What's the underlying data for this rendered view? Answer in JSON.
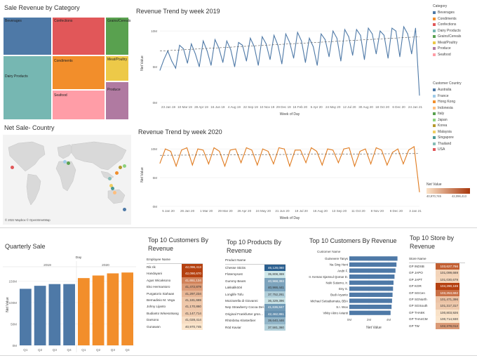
{
  "treemap": {
    "title": "Sale Revenue by Category",
    "cells": [
      {
        "label": "Beverages",
        "color": "#4e79a7"
      },
      {
        "label": "Confections",
        "color": "#e15759"
      },
      {
        "label": "Grains/Cereals",
        "color": "#59a14f"
      },
      {
        "label": "Condiments",
        "color": "#f28e2b"
      },
      {
        "label": "Meat/Poultry",
        "color": "#edc948"
      },
      {
        "label": "Dairy Products",
        "color": "#76b7b2"
      },
      {
        "label": "Seafood",
        "color": "#ff9da7"
      },
      {
        "label": "Produce",
        "color": "#b07aa1"
      }
    ]
  },
  "category_legend": {
    "title": "Category",
    "items": [
      {
        "label": "Beverages",
        "color": "#4e79a7"
      },
      {
        "label": "Condiments",
        "color": "#f28e2b"
      },
      {
        "label": "Confections",
        "color": "#e15759"
      },
      {
        "label": "Dairy Products",
        "color": "#76b7b2"
      },
      {
        "label": "Grains/Cereals",
        "color": "#59a14f"
      },
      {
        "label": "Meat/Poultry",
        "color": "#edc948"
      },
      {
        "label": "Produce",
        "color": "#b07aa1"
      },
      {
        "label": "Seafood",
        "color": "#ff9da7"
      }
    ]
  },
  "country_legend": {
    "title": "Customer Country",
    "items": [
      {
        "label": "Australia",
        "color": "#4e79a7"
      },
      {
        "label": "France",
        "color": "#a0cbe8"
      },
      {
        "label": "Hong Kong",
        "color": "#f28e2b"
      },
      {
        "label": "Indonesia",
        "color": "#ffbe7d"
      },
      {
        "label": "Italy",
        "color": "#59a14f"
      },
      {
        "label": "Japan",
        "color": "#8cd17d"
      },
      {
        "label": "Korea",
        "color": "#b6992d"
      },
      {
        "label": "Malaysia",
        "color": "#f1ce63"
      },
      {
        "label": "Singapore",
        "color": "#499894"
      },
      {
        "label": "Thailand",
        "color": "#86bcb6"
      },
      {
        "label": "USA",
        "color": "#e15759"
      }
    ]
  },
  "net_value_legend": {
    "title": "Net Value",
    "min": "40,970,745",
    "max": "42,096,413",
    "color_low": "#fbe3c9",
    "color_high": "#a8380d"
  },
  "map": {
    "title": "Net Sale- Country",
    "attribution": "© 2022 Mapbox © OpenStreetMap"
  },
  "chart_data": [
    {
      "type": "line",
      "title": "Revenue Trend by week 2019",
      "xlabel": "Week of Day",
      "ylabel": "Net Value",
      "y_ticks": [
        "0M",
        "5M",
        "10M"
      ],
      "ylim": [
        0,
        11
      ],
      "x_ticks": [
        "23 Jan 19",
        "10 Mar 19",
        "28 Apr 19",
        "16 Jun 19",
        "4 Aug 19",
        "22 Sep 19",
        "10 Nov 19",
        "29 Dec 19",
        "16 Feb 20",
        "5 Apr 20",
        "24 May 20",
        "12 Jul 20",
        "30 Aug 20",
        "18 Oct 20",
        "6 Dec 20",
        "24 Jan 21"
      ],
      "color": "#4e79a7",
      "values": [
        4.5,
        6.0,
        7.2,
        5.8,
        4.8,
        8.0,
        7.5,
        5.5,
        8.2,
        6.8,
        5.0,
        8.6,
        7.2,
        5.2,
        8.8,
        7.6,
        5.6,
        8.6,
        7.4,
        5.0,
        8.4,
        8.0,
        5.8,
        9.0,
        7.8,
        5.2,
        9.2,
        8.2,
        6.0,
        9.4,
        8.0,
        5.4,
        9.6,
        8.4,
        6.2,
        9.8,
        8.6,
        5.6,
        9.0,
        7.8,
        5.2,
        9.6,
        8.8,
        6.4,
        10.0,
        9.0,
        5.8,
        10.2,
        9.2,
        6.6,
        10.2,
        9.4,
        6.0,
        10.4,
        9.6,
        6.8,
        10.0,
        9.4,
        6.2,
        10.4,
        10.0,
        6.4,
        10.6,
        9.6,
        6.8,
        10.4,
        1.0
      ],
      "trend": [
        7.2,
        9.2
      ]
    },
    {
      "type": "line",
      "title": "Revenue Trend by week 2020",
      "xlabel": "Week of Day",
      "ylabel": "Net Value",
      "y_ticks": [
        "0M",
        "5M",
        "10M"
      ],
      "ylim": [
        0,
        11
      ],
      "x_ticks": [
        "5 Jan 20",
        "26 Jan 20",
        "1 Mar 20",
        "29 Mar 20",
        "26 Apr 20",
        "24 May 20",
        "21 Jun 20",
        "19 Jul 20",
        "16 Aug 20",
        "13 Sep 20",
        "11 Oct 20",
        "8 Nov 20",
        "6 Dec 20",
        "3 Jan 21"
      ],
      "color": "#e07b1f",
      "values": [
        7.5,
        10.0,
        9.6,
        7.0,
        9.8,
        10.2,
        7.2,
        10.0,
        9.8,
        7.4,
        10.2,
        9.6,
        7.0,
        9.8,
        10.0,
        7.6,
        10.2,
        9.8,
        7.2,
        10.0,
        9.6,
        7.4,
        10.2,
        10.0,
        7.0,
        9.8,
        9.8,
        7.6,
        10.2,
        9.6,
        7.2,
        10.0,
        9.8,
        7.6,
        10.0,
        10.2,
        7.0,
        9.6,
        10.0,
        7.4,
        10.2,
        9.8,
        7.2,
        9.4,
        10.0,
        7.4,
        9.8,
        10.4,
        2.5
      ],
      "trend": [
        8.9,
        9.2
      ]
    },
    {
      "type": "bar",
      "title": "Quarterly Sale",
      "header": "Day",
      "ylabel": "Net Value",
      "y_ticks": [
        "0M",
        "50M",
        "100M",
        "150M"
      ],
      "ylim": [
        0,
        190
      ],
      "groups": [
        {
          "year": "2019",
          "color": "#4e79a7",
          "categories": [
            "Q1",
            "Q2",
            "Q3",
            "Q4"
          ],
          "values": [
            132,
            139,
            143,
            143
          ]
        },
        {
          "year": "2020",
          "color": "#f28e2b",
          "categories": [
            "Q1",
            "Q2",
            "Q3",
            "Q4"
          ],
          "values": [
            157,
            163,
            168,
            170
          ]
        }
      ]
    },
    {
      "type": "bar",
      "orientation": "horizontal",
      "title": "Top 10 Customers By Revenue",
      "column_header": "Customer Name",
      "xlabel": "Net Value",
      "x_ticks": [
        "0M",
        "2M",
        "4M"
      ],
      "xlim": [
        0,
        5
      ],
      "color": "#4e79a7",
      "categories": [
        "Guinevere Tanys",
        "Na Sing Hent",
        "Andri F.",
        "Ir. Kemas Sjamsul Qomar D.",
        "Nuki Sutarno, Ir.",
        "Eny S.",
        "Budi Aryanto",
        "Michael Setiadiarnata, BBA",
        "S.I. Woo",
        "Vikky Akiro Avianti"
      ],
      "values": [
        4.9,
        4.8,
        4.7,
        4.6,
        4.5,
        4.45,
        4.4,
        4.35,
        4.3,
        4.2
      ]
    }
  ],
  "customers_table": {
    "title": "Top 10 Customers By Revenue",
    "col_name": "Employee Name",
    "rows": [
      {
        "name": "Rik rik",
        "value": "42,096,413"
      },
      {
        "name": "Handayani",
        "value": "42,090,670"
      },
      {
        "name": "Agus Wicaksono",
        "value": "41,651,134"
      },
      {
        "name": "Eko Hermantoro",
        "value": "41,472,879"
      },
      {
        "name": "Purgatorio Siahaan",
        "value": "41,297,234"
      },
      {
        "name": "Bernadinio M. Vega",
        "value": "41,181,669"
      },
      {
        "name": "Johny Lijanto",
        "value": "41,170,860"
      },
      {
        "name": "Budianto Wisesotsang",
        "value": "41,147,714"
      },
      {
        "name": "Darsono",
        "value": "41,028,414"
      },
      {
        "name": "Gunawan",
        "value": "40,970,745"
      }
    ]
  },
  "products_table": {
    "title": "Top 10 Products By Revenue",
    "col_name": "Product Name",
    "rows": [
      {
        "name": "Chesse Sticks",
        "value": "46,128,080"
      },
      {
        "name": "Flotemysost",
        "value": "35,808,369"
      },
      {
        "name": "Gummy Bears",
        "value": "40,968,393"
      },
      {
        "name": "Lakkalikööri",
        "value": "40,966,441"
      },
      {
        "name": "Longlife Tofu",
        "value": "37,752,261"
      },
      {
        "name": "Mozzarella di Giovanni",
        "value": "36,329,396"
      },
      {
        "name": "Nep Strawberry Cocoa Del..",
        "value": "41,636,847"
      },
      {
        "name": "Original Frankfurter grün...",
        "value": "42,462,861"
      },
      {
        "name": "Rhönbräu Klosterbier",
        "value": "39,640,446"
      },
      {
        "name": "Röd Kaviar",
        "value": "37,581,360"
      }
    ]
  },
  "stores_table": {
    "title": "Top 10 Store by Revenue",
    "col_name": "Store Name",
    "rows": [
      {
        "name": "GP INDSB",
        "value": "103,627,766"
      },
      {
        "name": "GP JAPO",
        "value": "101,099,669"
      },
      {
        "name": "GP JAPT",
        "value": "101,030,679"
      },
      {
        "name": "GP KOR",
        "value": "104,290,169"
      },
      {
        "name": "GP SGCen",
        "value": "103,253,692"
      },
      {
        "name": "GP SGNorth",
        "value": "101,471,396"
      },
      {
        "name": "GP SGSouth",
        "value": "101,317,317"
      },
      {
        "name": "GP THA8K",
        "value": "100,803,926"
      },
      {
        "name": "GP THA4CM",
        "value": "100,714,930"
      },
      {
        "name": "GP TW",
        "value": "102,378,012"
      }
    ]
  }
}
